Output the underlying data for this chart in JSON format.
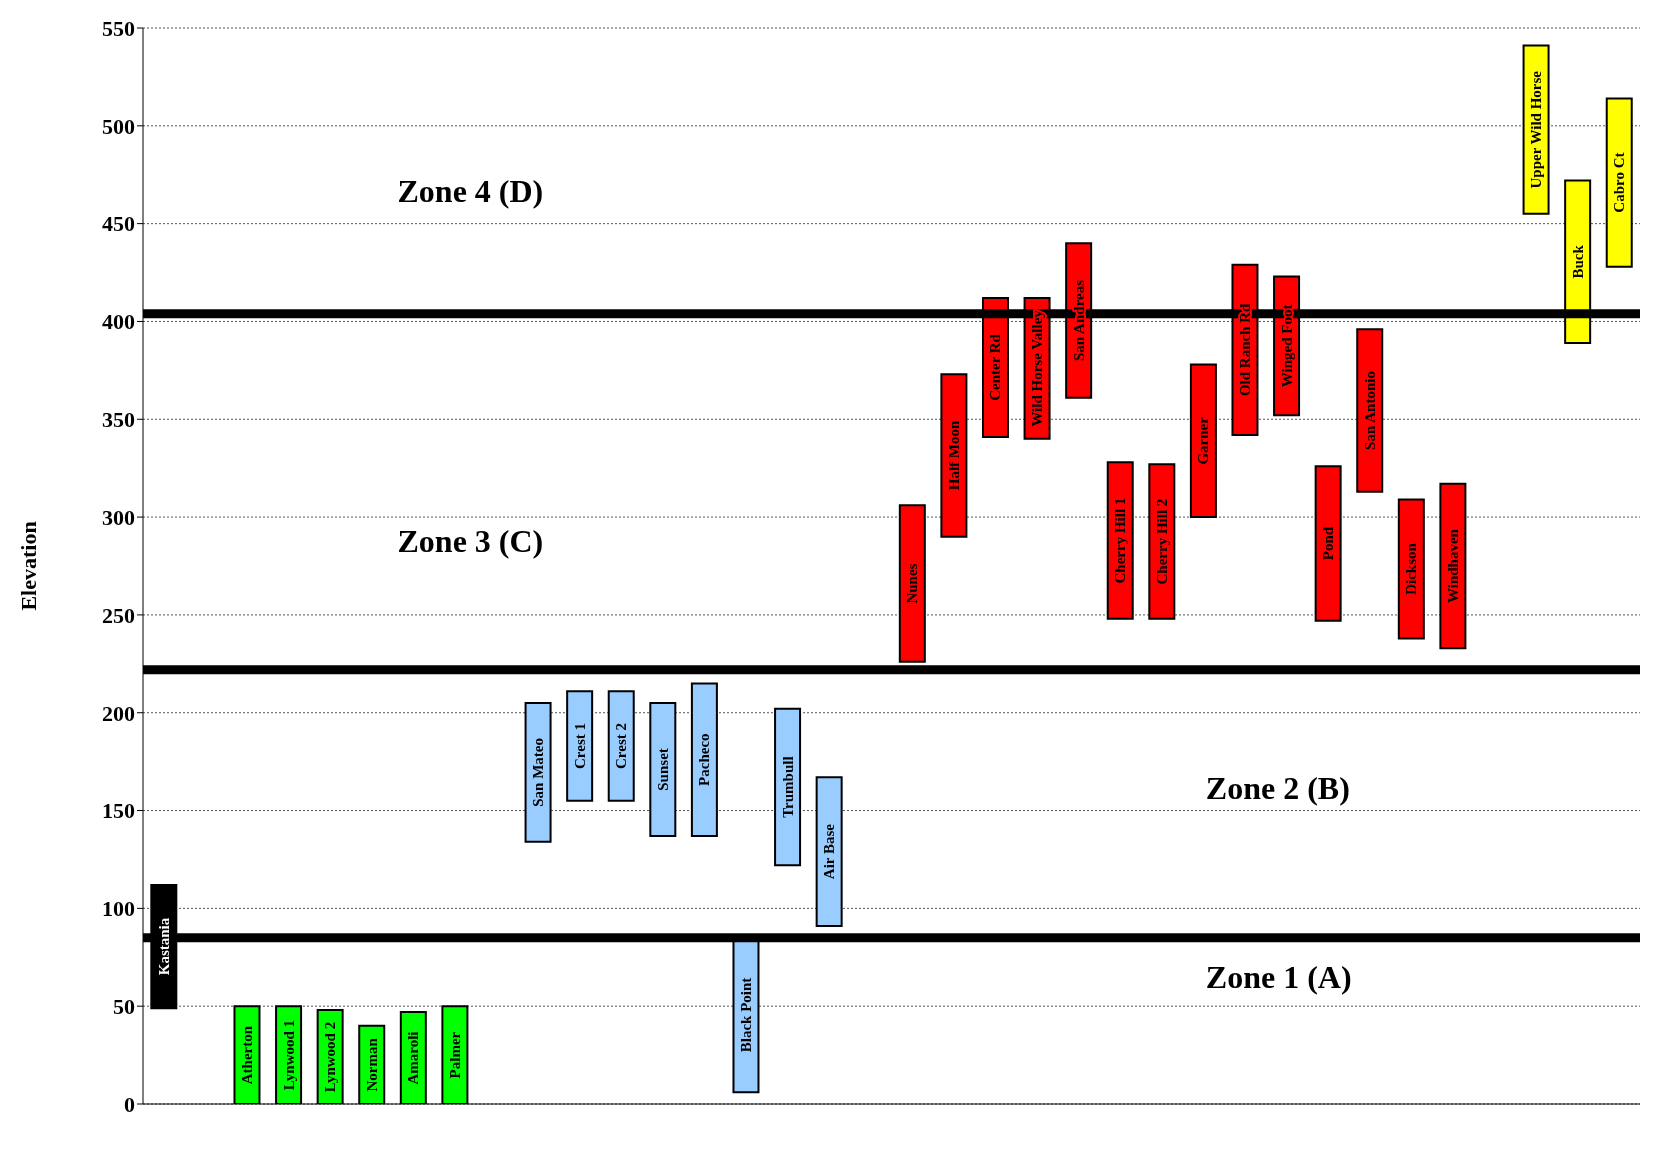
{
  "chart_data": {
    "type": "bar",
    "ylabel": "Elevation",
    "categories": [
      "Kastania",
      null,
      "Atherton",
      "Lynwood 1",
      "Lynwood 2",
      "Norman",
      "Amaroli",
      "Palmer",
      null,
      "San Mateo",
      "Crest 1",
      "Crest 2",
      "Sunset",
      "Pacheco",
      "Black Point",
      "Trumbull",
      "Air Base",
      null,
      "Nunes",
      "Half Moon",
      "Center Rd",
      "Wild Horse Valley",
      "San Andreas",
      "Cherry Hill 1",
      "Cherry Hill 2",
      "Garner",
      "Old Ranch Rd",
      "Winged Foot",
      "Pond",
      "San Antonio",
      "Dickson",
      "Windhaven",
      null,
      "Upper Wild Horse",
      "Buck",
      "Cabro Ct"
    ],
    "base": [
      49,
      null,
      0,
      0,
      0,
      0,
      0,
      0,
      null,
      134,
      155,
      155,
      137,
      137,
      6,
      122,
      91,
      null,
      226,
      290,
      341,
      340,
      361,
      248,
      248,
      300,
      342,
      352,
      247,
      313,
      238,
      233,
      null,
      455,
      389,
      428
    ],
    "values": [
      63,
      null,
      50,
      50,
      48,
      40,
      47,
      50,
      null,
      71,
      56,
      56,
      68,
      78,
      79,
      80,
      76,
      null,
      80,
      83,
      71,
      72,
      79,
      80,
      79,
      78,
      87,
      71,
      79,
      83,
      71,
      84,
      null,
      86,
      83,
      86
    ],
    "colors": [
      "#000000",
      "#ffffff",
      "#00ff00",
      "#00ff00",
      "#00ff00",
      "#00ff00",
      "#00ff00",
      "#00ff00",
      "#ffffff",
      "#99ccff",
      "#99ccff",
      "#99ccff",
      "#99ccff",
      "#99ccff",
      "#99ccff",
      "#99ccff",
      "#99ccff",
      "#ffffff",
      "#ff0000",
      "#ff0000",
      "#ff0000",
      "#ff0000",
      "#ff0000",
      "#ff0000",
      "#ff0000",
      "#ff0000",
      "#ff0000",
      "#ff0000",
      "#ff0000",
      "#ff0000",
      "#ff0000",
      "#ff0000",
      "#ffffff",
      "#ffff00",
      "#ffff00",
      "#ffff00"
    ],
    "ylim": [
      0,
      550
    ],
    "yticks": [
      0,
      50,
      100,
      150,
      200,
      250,
      300,
      350,
      400,
      450,
      500,
      550
    ],
    "grid": "y",
    "tick_labels": "y",
    "legend": false,
    "ref_lines": [
      {
        "axis": "y",
        "value": 85,
        "color": "#000000"
      },
      {
        "axis": "y",
        "value": 222,
        "color": "#000000"
      },
      {
        "axis": "y",
        "value": 404,
        "color": "#000000"
      }
    ],
    "annotations": [
      "Zone 4 (D)",
      "Zone 3 (C)",
      "Zone 2 (B)",
      "Zone 1 (A)"
    ]
  }
}
